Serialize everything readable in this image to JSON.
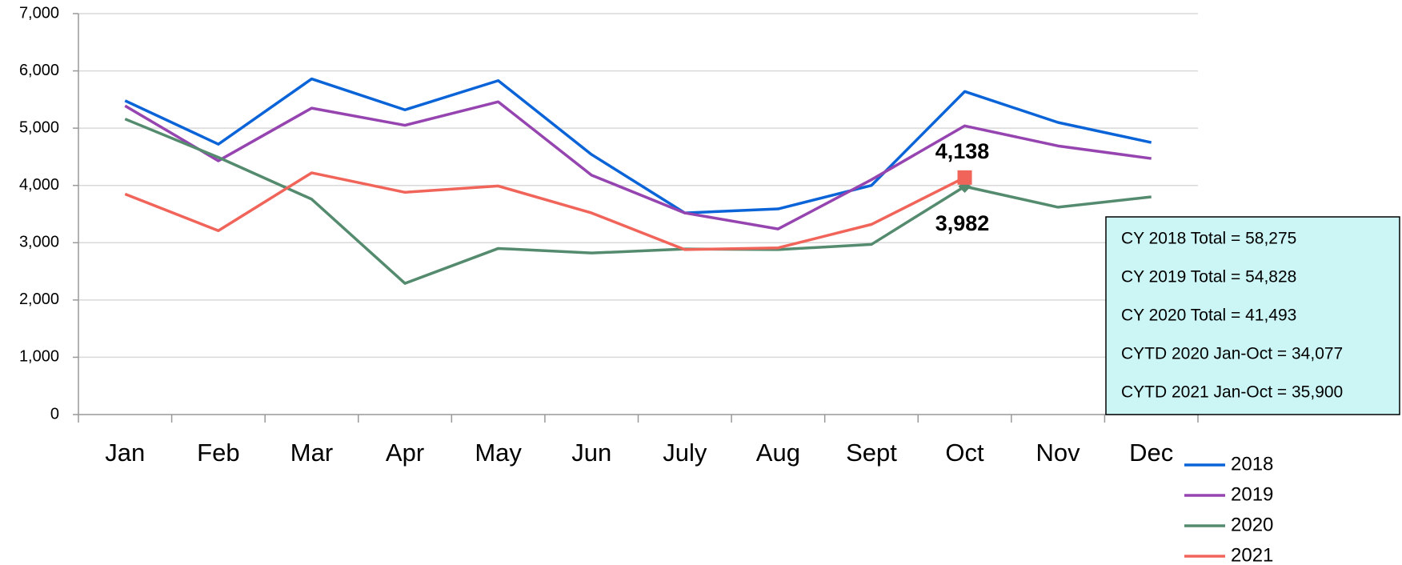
{
  "chart_data": {
    "type": "line",
    "categories": [
      "Jan",
      "Feb",
      "Mar",
      "Apr",
      "May",
      "Jun",
      "July",
      "Aug",
      "Sept",
      "Oct",
      "Nov",
      "Dec"
    ],
    "series": [
      {
        "name": "2018",
        "color": "#0a64d8",
        "values": [
          5480,
          4720,
          5860,
          5320,
          5830,
          4540,
          3520,
          3590,
          4000,
          5640,
          5100,
          4750
        ]
      },
      {
        "name": "2019",
        "color": "#9544b0",
        "values": [
          5390,
          4430,
          5350,
          5050,
          5460,
          4180,
          3520,
          3240,
          4100,
          5040,
          4690,
          4470
        ]
      },
      {
        "name": "2020",
        "color": "#548b6e",
        "values": [
          5160,
          4490,
          3760,
          2290,
          2900,
          2820,
          2890,
          2880,
          2970,
          3982,
          3620,
          3800
        ],
        "value_labels": [
          null,
          null,
          null,
          null,
          null,
          null,
          null,
          null,
          null,
          "3,982",
          null,
          null
        ]
      },
      {
        "name": "2021",
        "color": "#f0645a",
        "values": [
          3850,
          3210,
          4220,
          3880,
          3990,
          3520,
          2880,
          2910,
          3320,
          4138,
          null,
          null
        ],
        "value_labels": [
          null,
          null,
          null,
          null,
          null,
          null,
          null,
          null,
          null,
          "4,138",
          null,
          null
        ]
      }
    ],
    "ylim": [
      0,
      7000
    ],
    "yticks": [
      0,
      {
        "value": 1000,
        "label": "1,000"
      },
      {
        "value": 2000,
        "label": "2,000"
      },
      {
        "value": 3000,
        "label": "3,000"
      },
      {
        "value": 4000,
        "label": "4,000"
      },
      {
        "value": 5000,
        "label": "5,000"
      },
      {
        "value": 6000,
        "label": "6,000"
      },
      {
        "value": 7000,
        "label": "7,000"
      }
    ],
    "grid": true,
    "legend": "bottom-right",
    "annotations": [
      "CY 2018 Total = 58,275",
      "CY 2019 Total = 54,828",
      "CY 2020 Total = 41,493",
      "CYTD 2020 Jan-Oct = 34,077",
      "CYTD 2021 Jan-Oct = 35,900"
    ]
  }
}
